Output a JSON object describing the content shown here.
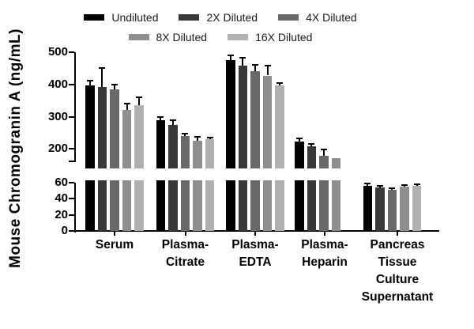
{
  "legend": {
    "items": [
      {
        "label": "Undiluted",
        "color": "#000000"
      },
      {
        "label": "2X Diluted",
        "color": "#383838"
      },
      {
        "label": "4X Diluted",
        "color": "#696969"
      },
      {
        "label": "8X Diluted",
        "color": "#8e8e8e"
      },
      {
        "label": "16X Diluted",
        "color": "#b0b0b0"
      }
    ],
    "rows": [
      [
        0,
        1,
        2
      ],
      [
        3,
        4
      ]
    ]
  },
  "chart_data": {
    "type": "bar",
    "title": "",
    "ylabel": "Mouse Chromogranin A (ng/mL)",
    "xlabel": "",
    "units": "ng/mL",
    "series": [
      "Undiluted",
      "2X Diluted",
      "4X Diluted",
      "8X Diluted",
      "16X Diluted"
    ],
    "series_colors": [
      "#000000",
      "#383838",
      "#696969",
      "#8e8e8e",
      "#b0b0b0"
    ],
    "error_bars": "sd, upper whisker with cap, black",
    "axis_break": {
      "between": [
        60,
        159
      ],
      "style": "segmented y-axis"
    },
    "upper_axis": {
      "ticks": [
        200,
        300,
        400,
        500
      ],
      "range": [
        159,
        510
      ]
    },
    "lower_axis": {
      "ticks": [
        0,
        20,
        40,
        60
      ],
      "range": [
        0,
        63
      ]
    },
    "grid": false,
    "legend_position": "top",
    "groups": [
      {
        "label": "Serum",
        "label_lines": [
          "Serum"
        ],
        "values": [
          397,
          392,
          385,
          322,
          336
        ],
        "errors": [
          18,
          62,
          16,
          21,
          27
        ]
      },
      {
        "label": "Plasma-Citrate",
        "label_lines": [
          "Plasma-",
          "Citrate"
        ],
        "values": [
          289,
          275,
          239,
          226,
          230
        ],
        "errors": [
          13,
          17,
          11,
          13,
          8
        ]
      },
      {
        "label": "Plasma-EDTA",
        "label_lines": [
          "Plasma-",
          "EDTA"
        ],
        "values": [
          476,
          459,
          442,
          428,
          398
        ],
        "errors": [
          17,
          27,
          22,
          34,
          9
        ]
      },
      {
        "label": "Plasma-Heparin",
        "label_lines": [
          "Plasma-",
          "Heparin"
        ],
        "values": [
          223,
          209,
          178,
          172
        ],
        "errors": [
          12,
          8,
          22,
          0
        ],
        "note": "only 4 bars shown (Undiluted, 2X, 4X, 8X); 16X bar absent"
      },
      {
        "label": "Pancreas Tissue Culture Supernatant",
        "label_lines": [
          "Pancreas",
          "Tissue",
          "Culture",
          "Supernatant"
        ],
        "values": [
          56,
          54,
          51,
          55,
          56
        ],
        "errors": [
          4,
          3,
          3,
          3,
          3
        ]
      }
    ]
  }
}
